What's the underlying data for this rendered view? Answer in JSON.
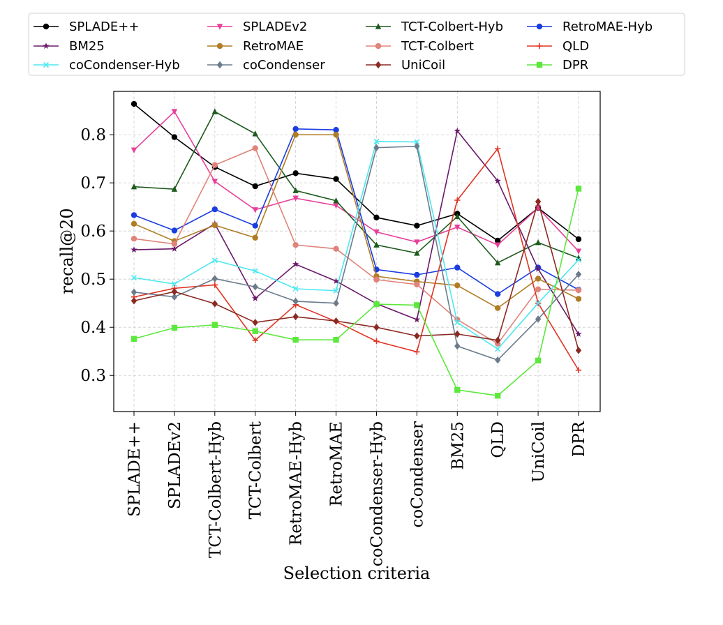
{
  "chart_data": {
    "type": "line",
    "title": "",
    "xlabel": "Selection criteria",
    "ylabel": "recall@20",
    "ylim": [
      0.225,
      0.89
    ],
    "yticks": [
      "0.3",
      "0.4",
      "0.5",
      "0.6",
      "0.7",
      "0.8"
    ],
    "grid": true,
    "legend_position": "top",
    "categories": [
      "SPLADE++",
      "SPLADEv2",
      "TCT-Colbert-Hyb",
      "TCT-Colbert",
      "RetroMAE-Hyb",
      "RetroMAE",
      "coCondenser-Hyb",
      "coCondenser",
      "BM25",
      "QLD",
      "UniCoil",
      "DPR"
    ],
    "series": [
      {
        "name": "SPLADE++",
        "color": "#000000",
        "marker": "circle",
        "values": [
          0.864,
          0.795,
          0.733,
          0.693,
          0.72,
          0.708,
          0.628,
          0.611,
          0.636,
          0.58,
          0.648,
          0.583
        ]
      },
      {
        "name": "SPLADEv2",
        "color": "#e8409a",
        "marker": "triangle-down",
        "values": [
          0.768,
          0.848,
          0.703,
          0.644,
          0.668,
          0.653,
          0.598,
          0.577,
          0.608,
          0.571,
          0.648,
          0.558
        ]
      },
      {
        "name": "TCT-Colbert-Hyb",
        "color": "#1e5a1e",
        "marker": "triangle-up",
        "values": [
          0.692,
          0.687,
          0.848,
          0.802,
          0.684,
          0.663,
          0.571,
          0.554,
          0.63,
          0.534,
          0.576,
          0.544
        ]
      },
      {
        "name": "RetroMAE-Hyb",
        "color": "#1b3de0",
        "marker": "circle",
        "values": [
          0.633,
          0.601,
          0.645,
          0.611,
          0.812,
          0.81,
          0.52,
          0.509,
          0.524,
          0.469,
          0.524,
          0.478
        ]
      },
      {
        "name": "BM25",
        "color": "#6a1a6a",
        "marker": "star",
        "values": [
          0.561,
          0.563,
          0.615,
          0.46,
          0.531,
          0.496,
          0.449,
          0.416,
          0.808,
          0.704,
          0.521,
          0.386
        ]
      },
      {
        "name": "RetroMAE",
        "color": "#b07d25",
        "marker": "circle",
        "values": [
          0.615,
          0.579,
          0.612,
          0.586,
          0.8,
          0.8,
          0.506,
          0.495,
          0.487,
          0.44,
          0.501,
          0.459
        ]
      },
      {
        "name": "TCT-Colbert",
        "color": "#e0837b",
        "marker": "circle",
        "values": [
          0.584,
          0.573,
          0.737,
          0.772,
          0.571,
          0.563,
          0.499,
          0.489,
          0.416,
          0.366,
          0.479,
          0.477
        ]
      },
      {
        "name": "QLD",
        "color": "#e03424",
        "marker": "plus",
        "values": [
          0.463,
          0.481,
          0.488,
          0.373,
          0.447,
          0.412,
          0.371,
          0.349,
          0.664,
          0.771,
          0.45,
          0.311
        ]
      },
      {
        "name": "coCondenser-Hyb",
        "color": "#4de8f0",
        "marker": "x",
        "values": [
          0.503,
          0.49,
          0.539,
          0.517,
          0.48,
          0.476,
          0.786,
          0.785,
          0.41,
          0.355,
          0.45,
          0.54
        ]
      },
      {
        "name": "coCondenser",
        "color": "#6b7b8b",
        "marker": "diamond",
        "values": [
          0.473,
          0.463,
          0.501,
          0.484,
          0.454,
          0.45,
          0.773,
          0.776,
          0.361,
          0.332,
          0.417,
          0.51
        ]
      },
      {
        "name": "UniCoil",
        "color": "#8b2a22",
        "marker": "diamond",
        "values": [
          0.455,
          0.474,
          0.449,
          0.41,
          0.422,
          0.413,
          0.4,
          0.382,
          0.386,
          0.373,
          0.661,
          0.352
        ]
      },
      {
        "name": "DPR",
        "color": "#5ce83c",
        "marker": "square",
        "values": [
          0.376,
          0.399,
          0.405,
          0.392,
          0.374,
          0.374,
          0.448,
          0.446,
          0.27,
          0.258,
          0.331,
          0.688
        ]
      }
    ]
  }
}
